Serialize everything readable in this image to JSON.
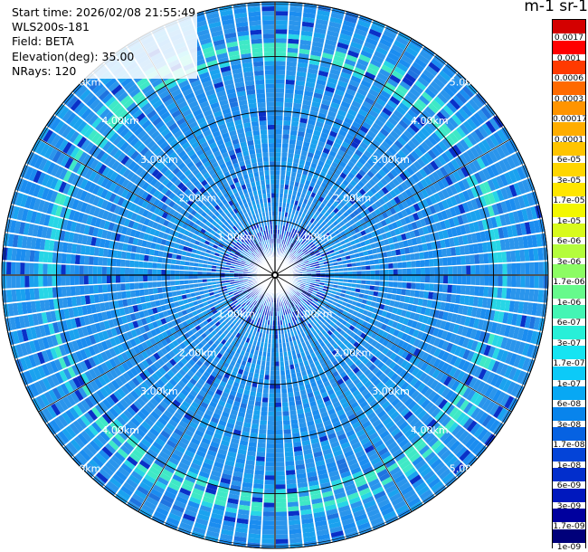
{
  "header": {
    "start_time": "Start time: 2026/02/08 21:55:49",
    "instrument": "WLS200s-181",
    "field": "Field: BETA",
    "elevation": "Elevation(deg): 35.00",
    "nrays": "NRays: 120"
  },
  "colorbar": {
    "title": "m-1 sr-1",
    "labels": [
      "0.0017",
      "0.001",
      "0.0006",
      "0.0003",
      "0.00017",
      "0.0001",
      "6e-05",
      "3e-05",
      "1.7e-05",
      "1e-05",
      "6e-06",
      "3e-06",
      "1.7e-06",
      "1e-06",
      "6e-07",
      "3e-07",
      "1.7e-07",
      "1e-07",
      "6e-08",
      "3e-08",
      "1.7e-08",
      "1e-08",
      "6e-09",
      "3e-09",
      "1.7e-09",
      "1e-09"
    ],
    "colors": [
      "#d40000",
      "#ff0000",
      "#ff3a00",
      "#ff6a00",
      "#ff9400",
      "#ffad00",
      "#ffc400",
      "#ffd600",
      "#ffe600",
      "#f3f700",
      "#d8fa1c",
      "#b4fc3c",
      "#8cfc63",
      "#66fa8c",
      "#44f5b4",
      "#28efd8",
      "#16e4f2",
      "#0ccaf8",
      "#08a8f4",
      "#0884ec",
      "#0662e2",
      "#0444d8",
      "#022ecc",
      "#0018be",
      "#00009e",
      "#00007a"
    ]
  },
  "chart_data": {
    "type": "ppi",
    "field": "BETA",
    "units": "m-1 sr-1",
    "elevation_deg": 35.0,
    "nrays": 120,
    "max_range_km": 5.0,
    "range_ring_labels": [
      "1.00km",
      "2.00km",
      "3.00km",
      "4.00km",
      "5.00km"
    ],
    "range_rings_km": [
      1,
      2,
      3,
      4,
      5
    ],
    "bright_band_km": 4.15
  }
}
